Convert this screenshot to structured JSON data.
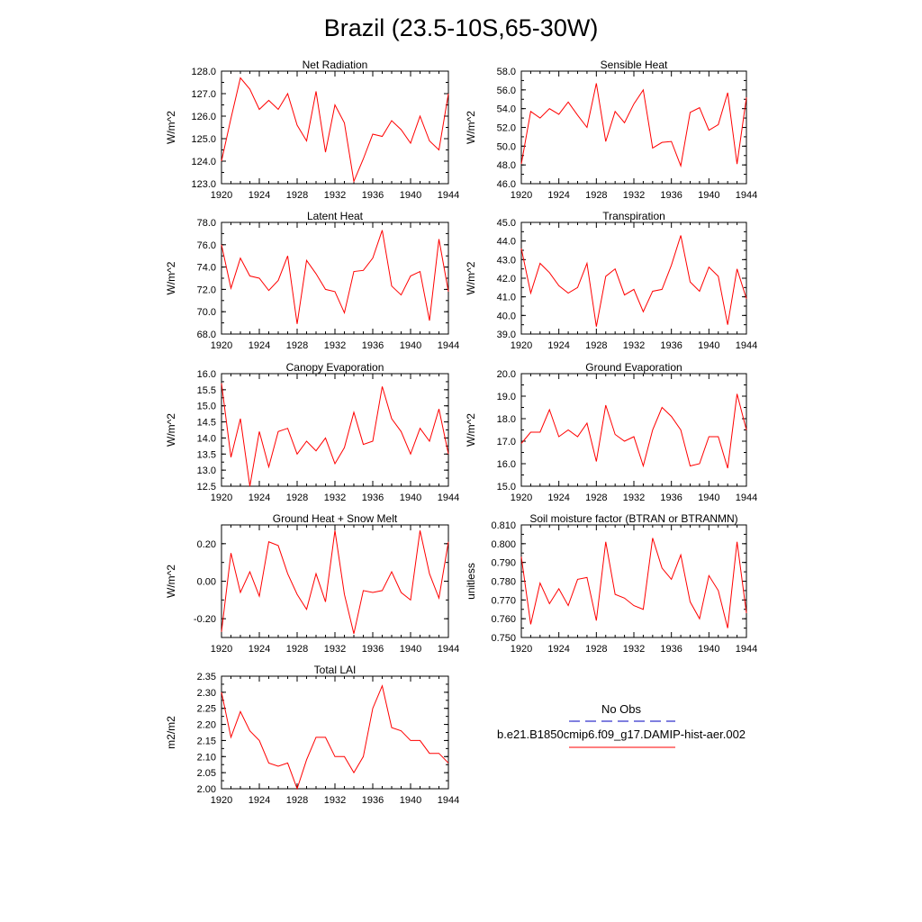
{
  "title": "Brazil (23.5-10S,65-30W)",
  "chart_data": [
    {
      "type": "line",
      "title": "Net Radiation",
      "ylabel": "W/m^2",
      "ylim": [
        123.0,
        128.0
      ],
      "yticks": [
        "123.0",
        "124.0",
        "125.0",
        "126.0",
        "127.0",
        "128.0"
      ],
      "xlim": [
        1920,
        1944
      ],
      "xticks": [
        "1920",
        "1924",
        "1928",
        "1932",
        "1936",
        "1940",
        "1944"
      ],
      "x": [
        1920,
        1921,
        1922,
        1923,
        1924,
        1925,
        1926,
        1927,
        1928,
        1929,
        1930,
        1931,
        1932,
        1933,
        1934,
        1935,
        1936,
        1937,
        1938,
        1939,
        1940,
        1941,
        1942,
        1943,
        1944
      ],
      "series": [
        {
          "values": [
            124.0,
            125.9,
            127.7,
            127.2,
            126.3,
            126.7,
            126.3,
            127.0,
            125.6,
            124.9,
            127.1,
            124.4,
            126.5,
            125.7,
            123.1,
            124.1,
            125.2,
            125.1,
            125.8,
            125.4,
            124.8,
            126.0,
            124.9,
            124.5,
            127.0
          ]
        }
      ]
    },
    {
      "type": "line",
      "title": "Sensible Heat",
      "ylabel": "W/m^2",
      "ylim": [
        46.0,
        58.0
      ],
      "yticks": [
        "46.0",
        "48.0",
        "50.0",
        "52.0",
        "54.0",
        "56.0",
        "58.0"
      ],
      "xlim": [
        1920,
        1944
      ],
      "xticks": [
        "1920",
        "1924",
        "1928",
        "1932",
        "1936",
        "1940",
        "1944"
      ],
      "x": [
        1920,
        1921,
        1922,
        1923,
        1924,
        1925,
        1926,
        1927,
        1928,
        1929,
        1930,
        1931,
        1932,
        1933,
        1934,
        1935,
        1936,
        1937,
        1938,
        1939,
        1940,
        1941,
        1942,
        1943,
        1944
      ],
      "series": [
        {
          "values": [
            48.1,
            53.7,
            53.0,
            54.0,
            53.4,
            54.7,
            53.3,
            52.0,
            56.7,
            50.5,
            53.7,
            52.5,
            54.5,
            56.0,
            49.8,
            50.4,
            50.5,
            47.9,
            53.6,
            54.1,
            51.7,
            52.3,
            55.7,
            48.1,
            55.2
          ]
        }
      ]
    },
    {
      "type": "line",
      "title": "Latent Heat",
      "ylabel": "W/m^2",
      "ylim": [
        68.0,
        78.0
      ],
      "yticks": [
        "68.0",
        "70.0",
        "72.0",
        "74.0",
        "76.0",
        "78.0"
      ],
      "xlim": [
        1920,
        1944
      ],
      "xticks": [
        "1920",
        "1924",
        "1928",
        "1932",
        "1936",
        "1940",
        "1944"
      ],
      "x": [
        1920,
        1921,
        1922,
        1923,
        1924,
        1925,
        1926,
        1927,
        1928,
        1929,
        1930,
        1931,
        1932,
        1933,
        1934,
        1935,
        1936,
        1937,
        1938,
        1939,
        1940,
        1941,
        1942,
        1943,
        1944
      ],
      "series": [
        {
          "values": [
            76.0,
            72.1,
            74.8,
            73.2,
            73.0,
            71.9,
            72.8,
            75.0,
            68.9,
            74.6,
            73.4,
            72.0,
            71.8,
            69.9,
            73.6,
            73.7,
            74.8,
            77.3,
            72.3,
            71.5,
            73.2,
            73.6,
            69.2,
            76.5,
            71.8
          ]
        }
      ]
    },
    {
      "type": "line",
      "title": "Transpiration",
      "ylabel": "W/m^2",
      "ylim": [
        39.0,
        45.0
      ],
      "yticks": [
        "39.0",
        "40.0",
        "41.0",
        "42.0",
        "43.0",
        "44.0",
        "45.0"
      ],
      "xlim": [
        1920,
        1944
      ],
      "xticks": [
        "1920",
        "1924",
        "1928",
        "1932",
        "1936",
        "1940",
        "1944"
      ],
      "x": [
        1920,
        1921,
        1922,
        1923,
        1924,
        1925,
        1926,
        1927,
        1928,
        1929,
        1930,
        1931,
        1932,
        1933,
        1934,
        1935,
        1936,
        1937,
        1938,
        1939,
        1940,
        1941,
        1942,
        1943,
        1944
      ],
      "series": [
        {
          "values": [
            43.6,
            41.2,
            42.8,
            42.3,
            41.6,
            41.2,
            41.5,
            42.8,
            39.4,
            42.1,
            42.5,
            41.1,
            41.4,
            40.2,
            41.3,
            41.4,
            42.7,
            44.3,
            41.8,
            41.3,
            42.6,
            42.1,
            39.5,
            42.5,
            40.9
          ]
        }
      ]
    },
    {
      "type": "line",
      "title": "Canopy Evaporation",
      "ylabel": "W/m^2",
      "ylim": [
        12.5,
        16.0
      ],
      "yticks": [
        "12.5",
        "13.0",
        "13.5",
        "14.0",
        "14.5",
        "15.0",
        "15.5",
        "16.0"
      ],
      "xlim": [
        1920,
        1944
      ],
      "xticks": [
        "1920",
        "1924",
        "1928",
        "1932",
        "1936",
        "1940",
        "1944"
      ],
      "x": [
        1920,
        1921,
        1922,
        1923,
        1924,
        1925,
        1926,
        1927,
        1928,
        1929,
        1930,
        1931,
        1932,
        1933,
        1934,
        1935,
        1936,
        1937,
        1938,
        1939,
        1940,
        1941,
        1942,
        1943,
        1944
      ],
      "series": [
        {
          "values": [
            15.7,
            13.4,
            14.6,
            12.5,
            14.2,
            13.1,
            14.2,
            14.3,
            13.5,
            13.9,
            13.6,
            14.0,
            13.2,
            13.7,
            14.8,
            13.8,
            13.9,
            15.6,
            14.6,
            14.2,
            13.5,
            14.3,
            13.9,
            14.9,
            13.5
          ]
        }
      ]
    },
    {
      "type": "line",
      "title": "Ground Evaporation",
      "ylabel": "W/m^2",
      "ylim": [
        15.0,
        20.0
      ],
      "yticks": [
        "15.0",
        "16.0",
        "17.0",
        "18.0",
        "19.0",
        "20.0"
      ],
      "xlim": [
        1920,
        1944
      ],
      "xticks": [
        "1920",
        "1924",
        "1928",
        "1932",
        "1936",
        "1940",
        "1944"
      ],
      "x": [
        1920,
        1921,
        1922,
        1923,
        1924,
        1925,
        1926,
        1927,
        1928,
        1929,
        1930,
        1931,
        1932,
        1933,
        1934,
        1935,
        1936,
        1937,
        1938,
        1939,
        1940,
        1941,
        1942,
        1943,
        1944
      ],
      "series": [
        {
          "values": [
            16.9,
            17.4,
            17.4,
            18.4,
            17.2,
            17.5,
            17.2,
            17.8,
            16.1,
            18.6,
            17.3,
            17.0,
            17.2,
            15.9,
            17.5,
            18.5,
            18.1,
            17.5,
            15.9,
            16.0,
            17.2,
            17.2,
            15.8,
            19.1,
            17.5
          ]
        }
      ]
    },
    {
      "type": "line",
      "title": "Ground Heat + Snow Melt",
      "ylabel": "W/m^2",
      "ylim": [
        -0.3,
        0.3
      ],
      "yticks": [
        "-0.20",
        "0.00",
        "0.20"
      ],
      "ytick_values": [
        -0.2,
        0.0,
        0.2
      ],
      "xlim": [
        1920,
        1944
      ],
      "xticks": [
        "1920",
        "1924",
        "1928",
        "1932",
        "1936",
        "1940",
        "1944"
      ],
      "x": [
        1920,
        1921,
        1922,
        1923,
        1924,
        1925,
        1926,
        1927,
        1928,
        1929,
        1930,
        1931,
        1932,
        1933,
        1934,
        1935,
        1936,
        1937,
        1938,
        1939,
        1940,
        1941,
        1942,
        1943,
        1944
      ],
      "series": [
        {
          "values": [
            -0.27,
            0.15,
            -0.06,
            0.05,
            -0.08,
            0.21,
            0.19,
            0.04,
            -0.07,
            -0.15,
            0.04,
            -0.11,
            0.27,
            -0.07,
            -0.28,
            -0.05,
            -0.06,
            -0.05,
            0.05,
            -0.06,
            -0.1,
            0.27,
            0.04,
            -0.09,
            0.21
          ]
        }
      ]
    },
    {
      "type": "line",
      "title": "Soil moisture factor (BTRAN or BTRANMN)",
      "ylabel": "unitless",
      "ylim": [
        0.75,
        0.81
      ],
      "yticks": [
        "0.750",
        "0.760",
        "0.770",
        "0.780",
        "0.790",
        "0.800",
        "0.810"
      ],
      "xlim": [
        1920,
        1944
      ],
      "xticks": [
        "1920",
        "1924",
        "1928",
        "1932",
        "1936",
        "1940",
        "1944"
      ],
      "x": [
        1920,
        1921,
        1922,
        1923,
        1924,
        1925,
        1926,
        1927,
        1928,
        1929,
        1930,
        1931,
        1932,
        1933,
        1934,
        1935,
        1936,
        1937,
        1938,
        1939,
        1940,
        1941,
        1942,
        1943,
        1944
      ],
      "series": [
        {
          "values": [
            0.793,
            0.757,
            0.779,
            0.768,
            0.776,
            0.767,
            0.781,
            0.782,
            0.759,
            0.801,
            0.773,
            0.771,
            0.767,
            0.765,
            0.803,
            0.787,
            0.781,
            0.794,
            0.769,
            0.76,
            0.783,
            0.775,
            0.755,
            0.801,
            0.763
          ]
        }
      ]
    },
    {
      "type": "line",
      "title": "Total LAI",
      "ylabel": "m2/m2",
      "ylim": [
        2.0,
        2.35
      ],
      "yticks": [
        "2.00",
        "2.05",
        "2.10",
        "2.15",
        "2.20",
        "2.25",
        "2.30",
        "2.35"
      ],
      "xlim": [
        1920,
        1944
      ],
      "xticks": [
        "1920",
        "1924",
        "1928",
        "1932",
        "1936",
        "1940",
        "1944"
      ],
      "x": [
        1920,
        1921,
        1922,
        1923,
        1924,
        1925,
        1926,
        1927,
        1928,
        1929,
        1930,
        1931,
        1932,
        1933,
        1934,
        1935,
        1936,
        1937,
        1938,
        1939,
        1940,
        1941,
        1942,
        1943,
        1944
      ],
      "series": [
        {
          "values": [
            2.3,
            2.16,
            2.24,
            2.18,
            2.15,
            2.08,
            2.07,
            2.08,
            2.0,
            2.09,
            2.16,
            2.16,
            2.1,
            2.1,
            2.05,
            2.1,
            2.25,
            2.32,
            2.19,
            2.18,
            2.15,
            2.15,
            2.11,
            2.11,
            2.08
          ]
        }
      ]
    }
  ],
  "legend": {
    "obs_label": "No Obs",
    "obs_color": "#3333cc",
    "model_label": "b.e21.B1850cmip6.f09_g17.DAMIP-hist-aer.002",
    "model_color": "#ff0000"
  },
  "colors": {
    "line": "#ff0000",
    "axis": "#000000",
    "background": "#ffffff"
  }
}
